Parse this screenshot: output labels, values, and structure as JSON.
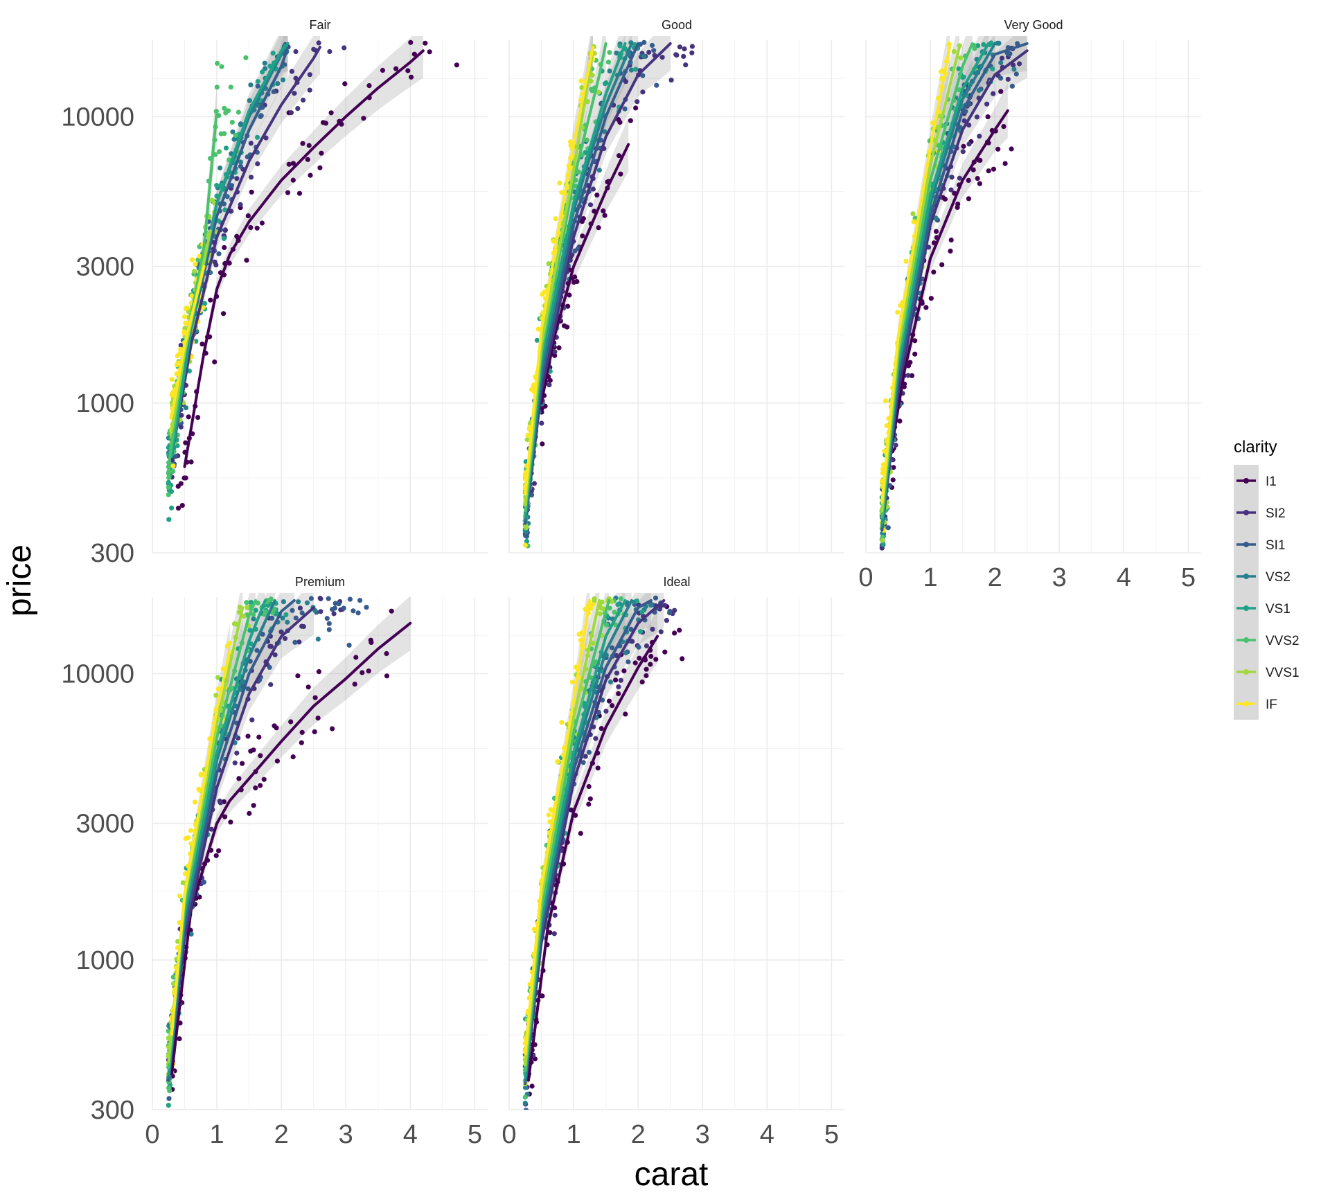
{
  "chart_data": {
    "type": "scatter",
    "facet_by": "cut",
    "facets": [
      "Fair",
      "Good",
      "Very Good",
      "Premium",
      "Ideal"
    ],
    "xlabel": "carat",
    "ylabel": "price",
    "x_ticks": [
      0,
      1,
      2,
      3,
      4,
      5
    ],
    "x_tick_labels": [
      "0",
      "1",
      "2",
      "3",
      "4",
      "5"
    ],
    "xlim": [
      0,
      5.2
    ],
    "y_scale": "log10",
    "y_ticks": [
      300,
      1000,
      3000,
      10000
    ],
    "y_tick_labels": [
      "300",
      "1000",
      "3000",
      "10000"
    ],
    "ylim": [
      300,
      18500
    ],
    "grid": true,
    "legend": {
      "title": "clarity",
      "position": "right",
      "entries": [
        "I1",
        "SI2",
        "SI1",
        "VS2",
        "VS1",
        "VVS2",
        "VVS1",
        "IF"
      ]
    },
    "series_colors": {
      "I1": "#440154",
      "SI2": "#46337E",
      "SI1": "#365C8D",
      "VS2": "#277F8E",
      "VS1": "#1FA187",
      "VVS2": "#4AC16D",
      "VVS1": "#9FDA3A",
      "IF": "#FDE725"
    },
    "smooth": "loess with confidence band",
    "trend_lines": {
      "Fair": {
        "I1": [
          [
            0.5,
            600
          ],
          [
            0.8,
            1500
          ],
          [
            1.0,
            2500
          ],
          [
            1.2,
            3300
          ],
          [
            1.5,
            4300
          ],
          [
            2.0,
            6000
          ],
          [
            2.5,
            7800
          ],
          [
            3.0,
            10000
          ],
          [
            3.5,
            12600
          ],
          [
            4.0,
            15500
          ],
          [
            4.2,
            17000
          ]
        ],
        "SI2": [
          [
            0.3,
            650
          ],
          [
            0.6,
            1600
          ],
          [
            1.0,
            3800
          ],
          [
            1.5,
            7000
          ],
          [
            2.0,
            11000
          ],
          [
            2.5,
            16000
          ],
          [
            2.6,
            17500
          ]
        ],
        "SI1": [
          [
            0.3,
            700
          ],
          [
            0.6,
            1800
          ],
          [
            1.0,
            4500
          ],
          [
            1.5,
            9000
          ],
          [
            2.0,
            15000
          ],
          [
            2.1,
            17500
          ]
        ],
        "VS2": [
          [
            0.3,
            700
          ],
          [
            0.6,
            1900
          ],
          [
            1.0,
            5000
          ],
          [
            1.5,
            10000
          ],
          [
            2.0,
            16500
          ],
          [
            2.1,
            18000
          ]
        ],
        "VS1": [
          [
            0.3,
            650
          ],
          [
            0.6,
            1800
          ],
          [
            1.0,
            5000
          ],
          [
            1.5,
            10500
          ],
          [
            2.0,
            17000
          ],
          [
            2.1,
            18000
          ]
        ],
        "VVS2": [
          [
            0.25,
            600
          ],
          [
            0.5,
            1500
          ],
          [
            0.8,
            3500
          ],
          [
            1.0,
            10500
          ]
        ],
        "VVS1": [
          [
            0.3,
            800
          ],
          [
            0.5,
            1500
          ],
          [
            0.9,
            4000
          ]
        ],
        "IF": [
          [
            0.3,
            900
          ],
          [
            0.5,
            1600
          ],
          [
            0.8,
            3000
          ]
        ]
      },
      "Good": {
        "I1": [
          [
            0.5,
            1000
          ],
          [
            0.7,
            1700
          ],
          [
            1.0,
            3000
          ],
          [
            1.5,
            5500
          ],
          [
            1.85,
            8000
          ]
        ],
        "SI2": [
          [
            0.25,
            380
          ],
          [
            0.5,
            1100
          ],
          [
            1.0,
            3800
          ],
          [
            1.5,
            8500
          ],
          [
            2.0,
            14000
          ],
          [
            2.5,
            18000
          ]
        ],
        "SI1": [
          [
            0.25,
            380
          ],
          [
            0.5,
            1200
          ],
          [
            1.0,
            4200
          ],
          [
            1.5,
            10000
          ],
          [
            2.0,
            18000
          ]
        ],
        "VS2": [
          [
            0.25,
            390
          ],
          [
            0.5,
            1300
          ],
          [
            1.0,
            4700
          ],
          [
            1.5,
            11000
          ],
          [
            1.9,
            18000
          ]
        ],
        "VS1": [
          [
            0.25,
            400
          ],
          [
            0.5,
            1400
          ],
          [
            1.0,
            5000
          ],
          [
            1.5,
            12000
          ],
          [
            1.8,
            18000
          ]
        ],
        "VVS2": [
          [
            0.25,
            420
          ],
          [
            0.5,
            1500
          ],
          [
            1.0,
            6000
          ],
          [
            1.4,
            14000
          ],
          [
            1.5,
            18000
          ]
        ],
        "VVS1": [
          [
            0.25,
            440
          ],
          [
            0.5,
            1600
          ],
          [
            1.0,
            6500
          ],
          [
            1.3,
            17000
          ]
        ],
        "IF": [
          [
            0.25,
            480
          ],
          [
            0.5,
            1800
          ],
          [
            1.0,
            8000
          ],
          [
            1.3,
            17500
          ]
        ]
      },
      "Very Good": {
        "I1": [
          [
            0.4,
            700
          ],
          [
            0.6,
            1300
          ],
          [
            1.0,
            3200
          ],
          [
            1.5,
            6000
          ],
          [
            2.0,
            9000
          ],
          [
            2.2,
            10500
          ]
        ],
        "SI2": [
          [
            0.25,
            360
          ],
          [
            0.5,
            1100
          ],
          [
            1.0,
            4200
          ],
          [
            1.5,
            9000
          ],
          [
            2.0,
            14000
          ],
          [
            2.5,
            17000
          ]
        ],
        "SI1": [
          [
            0.25,
            360
          ],
          [
            0.5,
            1200
          ],
          [
            1.0,
            4500
          ],
          [
            1.5,
            10500
          ],
          [
            2.0,
            16500
          ],
          [
            2.5,
            18000
          ]
        ],
        "VS2": [
          [
            0.25,
            370
          ],
          [
            0.5,
            1300
          ],
          [
            1.0,
            5000
          ],
          [
            1.5,
            11500
          ],
          [
            2.0,
            18000
          ]
        ],
        "VS1": [
          [
            0.25,
            380
          ],
          [
            0.5,
            1350
          ],
          [
            1.0,
            5300
          ],
          [
            1.5,
            12500
          ],
          [
            1.9,
            18000
          ]
        ],
        "VVS2": [
          [
            0.25,
            400
          ],
          [
            0.5,
            1450
          ],
          [
            1.0,
            6000
          ],
          [
            1.5,
            15000
          ],
          [
            1.65,
            18000
          ]
        ],
        "VVS1": [
          [
            0.25,
            420
          ],
          [
            0.5,
            1550
          ],
          [
            1.0,
            6800
          ],
          [
            1.45,
            17500
          ]
        ],
        "IF": [
          [
            0.25,
            450
          ],
          [
            0.5,
            1700
          ],
          [
            1.0,
            7800
          ],
          [
            1.3,
            17500
          ]
        ]
      },
      "Premium": {
        "I1": [
          [
            0.3,
            400
          ],
          [
            0.6,
            1500
          ],
          [
            1.0,
            3000
          ],
          [
            1.2,
            3600
          ],
          [
            1.5,
            4300
          ],
          [
            2.0,
            5800
          ],
          [
            2.5,
            7700
          ],
          [
            3.0,
            9600
          ],
          [
            3.5,
            12200
          ],
          [
            4.0,
            15000
          ]
        ],
        "SI2": [
          [
            0.25,
            380
          ],
          [
            0.5,
            1200
          ],
          [
            1.0,
            4000
          ],
          [
            1.5,
            8500
          ],
          [
            2.0,
            13500
          ],
          [
            2.5,
            17000
          ]
        ],
        "SI1": [
          [
            0.25,
            380
          ],
          [
            0.5,
            1300
          ],
          [
            1.0,
            4500
          ],
          [
            1.5,
            10000
          ],
          [
            2.0,
            16500
          ],
          [
            2.2,
            18000
          ]
        ],
        "VS2": [
          [
            0.25,
            390
          ],
          [
            0.5,
            1400
          ],
          [
            1.0,
            5000
          ],
          [
            1.5,
            11500
          ],
          [
            1.9,
            18000
          ]
        ],
        "VS1": [
          [
            0.25,
            400
          ],
          [
            0.5,
            1450
          ],
          [
            1.0,
            5300
          ],
          [
            1.5,
            13000
          ],
          [
            1.75,
            18000
          ]
        ],
        "VVS2": [
          [
            0.25,
            420
          ],
          [
            0.5,
            1550
          ],
          [
            1.0,
            6000
          ],
          [
            1.5,
            16000
          ],
          [
            1.6,
            18000
          ]
        ],
        "VVS1": [
          [
            0.25,
            440
          ],
          [
            0.5,
            1650
          ],
          [
            1.0,
            6700
          ],
          [
            1.4,
            17000
          ]
        ],
        "IF": [
          [
            0.3,
            550
          ],
          [
            0.5,
            1700
          ],
          [
            1.0,
            7500
          ],
          [
            1.2,
            12000
          ]
        ]
      },
      "Ideal": {
        "I1": [
          [
            0.3,
            380
          ],
          [
            0.6,
            1300
          ],
          [
            1.0,
            3300
          ],
          [
            1.5,
            6500
          ],
          [
            2.0,
            10500
          ],
          [
            2.3,
            13500
          ]
        ],
        "SI2": [
          [
            0.25,
            370
          ],
          [
            0.5,
            1150
          ],
          [
            1.0,
            4200
          ],
          [
            1.5,
            9500
          ],
          [
            2.0,
            15000
          ],
          [
            2.4,
            18000
          ]
        ],
        "SI1": [
          [
            0.25,
            370
          ],
          [
            0.5,
            1250
          ],
          [
            1.0,
            4600
          ],
          [
            1.5,
            10500
          ],
          [
            2.0,
            17000
          ],
          [
            2.2,
            18000
          ]
        ],
        "VS2": [
          [
            0.25,
            380
          ],
          [
            0.5,
            1350
          ],
          [
            1.0,
            5000
          ],
          [
            1.5,
            12000
          ],
          [
            1.9,
            18000
          ]
        ],
        "VS1": [
          [
            0.25,
            390
          ],
          [
            0.5,
            1400
          ],
          [
            1.0,
            5300
          ],
          [
            1.5,
            13500
          ],
          [
            1.8,
            18000
          ]
        ],
        "VVS2": [
          [
            0.25,
            410
          ],
          [
            0.5,
            1500
          ],
          [
            1.0,
            6200
          ],
          [
            1.5,
            16500
          ],
          [
            1.55,
            18000
          ]
        ],
        "VVS1": [
          [
            0.25,
            430
          ],
          [
            0.5,
            1650
          ],
          [
            1.0,
            7000
          ],
          [
            1.4,
            18000
          ]
        ],
        "IF": [
          [
            0.25,
            470
          ],
          [
            0.5,
            1800
          ],
          [
            1.0,
            8000
          ],
          [
            1.25,
            18000
          ]
        ]
      }
    },
    "point_extent_by_clarity": {
      "Fair": {
        "I1": [
          0.4,
          5.0
        ],
        "SI2": [
          0.3,
          3.0
        ],
        "SI1": [
          0.25,
          2.1
        ],
        "VS2": [
          0.25,
          2.1
        ],
        "VS1": [
          0.25,
          2.0
        ],
        "VVS2": [
          0.25,
          1.5
        ],
        "VVS1": [
          0.3,
          1.0
        ],
        "IF": [
          0.3,
          0.8
        ]
      },
      "Good": {
        "I1": [
          0.5,
          2.0
        ],
        "SI2": [
          0.25,
          3.0
        ],
        "SI1": [
          0.25,
          2.3
        ],
        "VS2": [
          0.25,
          2.1
        ],
        "VS1": [
          0.25,
          2.0
        ],
        "VVS2": [
          0.25,
          1.6
        ],
        "VVS1": [
          0.25,
          1.4
        ],
        "IF": [
          0.25,
          1.3
        ]
      },
      "Very Good": {
        "I1": [
          0.4,
          2.3
        ],
        "SI2": [
          0.25,
          2.5
        ],
        "SI1": [
          0.25,
          2.4
        ],
        "VS2": [
          0.25,
          2.3
        ],
        "VS1": [
          0.25,
          2.0
        ],
        "VVS2": [
          0.25,
          1.7
        ],
        "VVS1": [
          0.25,
          1.5
        ],
        "IF": [
          0.25,
          1.3
        ]
      },
      "Premium": {
        "I1": [
          0.3,
          4.0
        ],
        "SI2": [
          0.25,
          3.0
        ],
        "SI1": [
          0.25,
          3.5
        ],
        "VS2": [
          0.25,
          2.6
        ],
        "VS1": [
          0.25,
          2.1
        ],
        "VVS2": [
          0.25,
          1.9
        ],
        "VVS1": [
          0.25,
          1.5
        ],
        "IF": [
          0.3,
          1.2
        ]
      },
      "Ideal": {
        "I1": [
          0.3,
          2.7
        ],
        "SI2": [
          0.25,
          2.6
        ],
        "SI1": [
          0.25,
          2.5
        ],
        "VS2": [
          0.25,
          2.3
        ],
        "VS1": [
          0.25,
          2.1
        ],
        "VVS2": [
          0.25,
          1.8
        ],
        "VVS1": [
          0.25,
          1.6
        ],
        "IF": [
          0.25,
          1.3
        ]
      }
    }
  }
}
